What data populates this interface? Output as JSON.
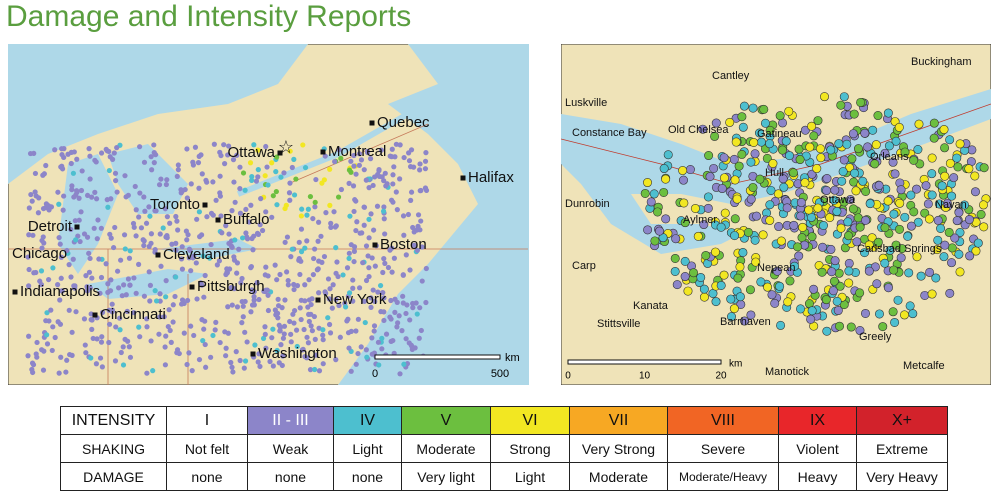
{
  "title": "Damage and Intensity Reports",
  "regional_map": {
    "cities": [
      {
        "label": "Quebec"
      },
      {
        "label": "Ottawa"
      },
      {
        "label": "Montreal"
      },
      {
        "label": "Halifax"
      },
      {
        "label": "Toronto"
      },
      {
        "label": "Buffalo"
      },
      {
        "label": "Detroit"
      },
      {
        "label": "Chicago"
      },
      {
        "label": "Cleveland"
      },
      {
        "label": "Boston"
      },
      {
        "label": "Indianapolis"
      },
      {
        "label": "Pittsburgh"
      },
      {
        "label": "Cincinnati"
      },
      {
        "label": "New York"
      },
      {
        "label": "Washington"
      }
    ],
    "scale": {
      "ticks": [
        0,
        500
      ],
      "unit": "km"
    }
  },
  "local_map": {
    "places": [
      {
        "label": "Buckingham"
      },
      {
        "label": "Cantley"
      },
      {
        "label": "Luskville"
      },
      {
        "label": "Constance Bay"
      },
      {
        "label": "Old Chelsea"
      },
      {
        "label": "Gatineau"
      },
      {
        "label": "Hull"
      },
      {
        "label": "Orleans"
      },
      {
        "label": "Ottawa"
      },
      {
        "label": "Dunrobin"
      },
      {
        "label": "Aylmer"
      },
      {
        "label": "Navan"
      },
      {
        "label": "Carlsbad Springs"
      },
      {
        "label": "Carp"
      },
      {
        "label": "Nepean"
      },
      {
        "label": "Kanata"
      },
      {
        "label": "Barrhaven"
      },
      {
        "label": "Stittsville"
      },
      {
        "label": "Greely"
      },
      {
        "label": "Manotick"
      },
      {
        "label": "Metcalfe"
      }
    ],
    "scale": {
      "ticks": [
        0,
        10,
        20
      ],
      "unit": "km"
    }
  },
  "table": {
    "header_colors": [
      "#ffffff",
      "#ffffff",
      "#8c85c9",
      "#4dbfcf",
      "#6cbf3f",
      "#f2e722",
      "#f7a823",
      "#f16524",
      "#e8262a",
      "#d2222b"
    ],
    "rows": [
      [
        "INTENSITY",
        "I",
        "II - III",
        "IV",
        "V",
        "VI",
        "VII",
        "VIII",
        "IX",
        "X+"
      ],
      [
        "SHAKING",
        "Not felt",
        "Weak",
        "Light",
        "Moderate",
        "Strong",
        "Very Strong",
        "Severe",
        "Violent",
        "Extreme"
      ],
      [
        "DAMAGE",
        "none",
        "none",
        "none",
        "Very light",
        "Light",
        "Moderate",
        "Moderate/Heavy",
        "Heavy",
        "Very Heavy"
      ]
    ]
  }
}
